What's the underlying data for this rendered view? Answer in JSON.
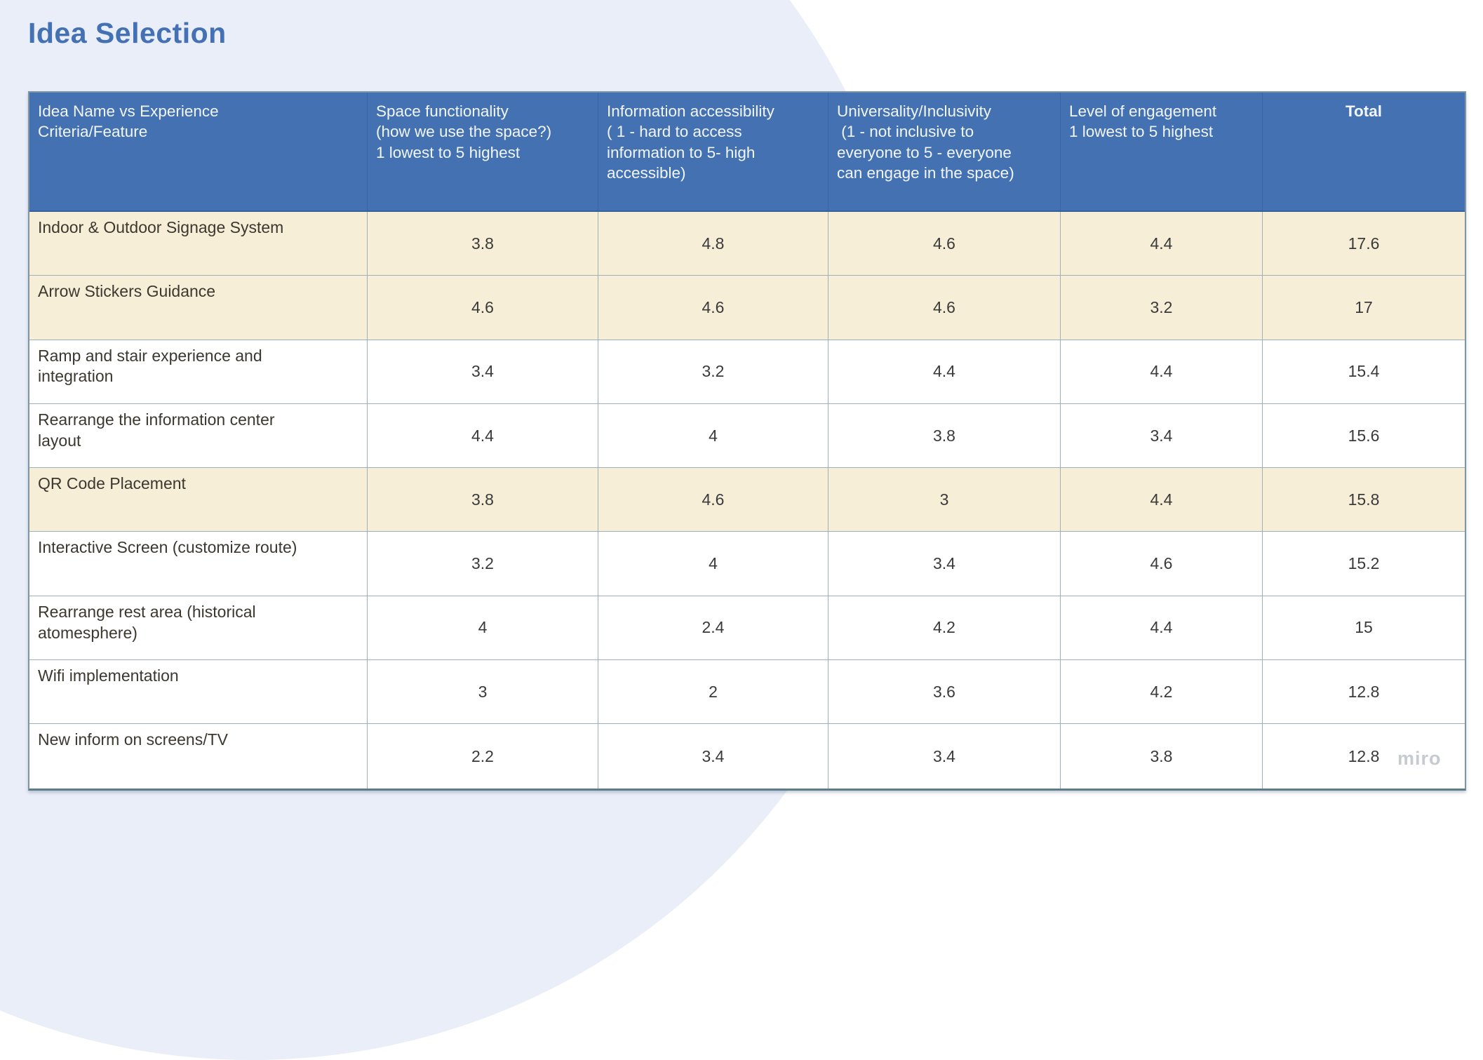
{
  "page": {
    "title": "Idea Selection",
    "watermark": "miro"
  },
  "colors": {
    "background_blue": "#e9eef9",
    "header_blue": "#4371b1",
    "highlight_beige": "#f6eed7",
    "title_blue": "#4470b4",
    "grid_border": "#9db0ba"
  },
  "table": {
    "columns": [
      {
        "label": "Idea Name vs Experience\nCriteria/Feature",
        "align": "left"
      },
      {
        "label": "Space functionality\n(how we use the space?)\n1 lowest to 5 highest",
        "align": "left"
      },
      {
        "label": "Information accessibility\n( 1 - hard to access\ninformation to 5- high\naccessible)",
        "align": "left"
      },
      {
        "label": "Universality/Inclusivity\n (1 - not inclusive to\neveryone to 5 - everyone\ncan engage in the space)",
        "align": "left"
      },
      {
        "label": "Level of engagement\n1 lowest to 5 highest",
        "align": "left"
      },
      {
        "label": "Total",
        "align": "center"
      }
    ],
    "rows": [
      {
        "name": "Indoor & Outdoor Signage System",
        "values": [
          "3.8",
          "4.8",
          "4.6",
          "4.4",
          "17.6"
        ],
        "highlighted": true
      },
      {
        "name": "Arrow Stickers Guidance",
        "values": [
          "4.6",
          "4.6",
          "4.6",
          "3.2",
          "17"
        ],
        "highlighted": true
      },
      {
        "name": "Ramp and stair experience and\nintegration",
        "values": [
          "3.4",
          "3.2",
          "4.4",
          "4.4",
          "15.4"
        ],
        "highlighted": false
      },
      {
        "name": "Rearrange the information center\nlayout",
        "values": [
          "4.4",
          "4",
          "3.8",
          "3.4",
          "15.6"
        ],
        "highlighted": false
      },
      {
        "name": "QR Code Placement",
        "values": [
          "3.8",
          "4.6",
          "3",
          "4.4",
          "15.8"
        ],
        "highlighted": true
      },
      {
        "name": "Interactive Screen (customize route)",
        "values": [
          "3.2",
          "4",
          "3.4",
          "4.6",
          "15.2"
        ],
        "highlighted": false
      },
      {
        "name": "Rearrange rest area (historical\natomesphere)",
        "values": [
          "4",
          "2.4",
          "4.2",
          "4.4",
          "15"
        ],
        "highlighted": false
      },
      {
        "name": "Wifi implementation",
        "values": [
          "3",
          "2",
          "3.6",
          "4.2",
          "12.8"
        ],
        "highlighted": false
      },
      {
        "name": "New inform on screens/TV",
        "values": [
          "2.2",
          "3.4",
          "3.4",
          "3.8",
          "12.8"
        ],
        "highlighted": false
      }
    ]
  }
}
